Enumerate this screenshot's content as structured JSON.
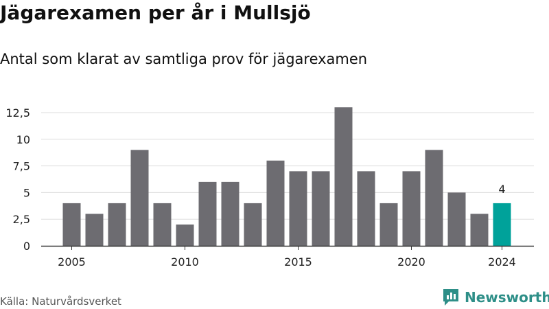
{
  "title": "Jägarexamen per år i Mullsjö",
  "subtitle": "Antal som klarat av samtliga prov för jägarexamen",
  "source": "Källa: Naturvårdsverket",
  "brand": "Newsworthy",
  "colors": {
    "bar": "#6d6c71",
    "highlight": "#00a29a",
    "grid": "#dddddd",
    "axis": "#333333",
    "brand": "#2e8f88"
  },
  "chart_data": {
    "type": "bar",
    "x": [
      2005,
      2006,
      2007,
      2008,
      2009,
      2010,
      2011,
      2012,
      2013,
      2014,
      2015,
      2016,
      2017,
      2018,
      2019,
      2020,
      2021,
      2022,
      2023,
      2024
    ],
    "values": [
      4,
      3,
      4,
      9,
      4,
      2,
      6,
      6,
      4,
      8,
      7,
      7,
      13,
      7,
      4,
      7,
      9,
      5,
      3,
      4
    ],
    "ylim": [
      0,
      13
    ],
    "yticks": [
      0,
      2.5,
      5,
      7.5,
      10,
      12.5
    ],
    "ytick_labels": [
      "0",
      "2,5",
      "5",
      "7,5",
      "10",
      "12,5"
    ],
    "xticks": [
      2005,
      2010,
      2015,
      2020,
      2024
    ],
    "xtick_labels": [
      "2005",
      "2010",
      "2015",
      "2020",
      "2024"
    ],
    "highlight": {
      "x": 2024,
      "label": "4"
    },
    "grid": true
  }
}
